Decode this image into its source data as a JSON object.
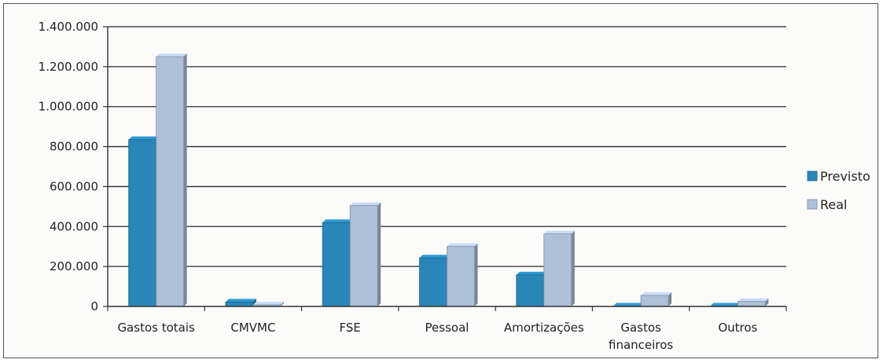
{
  "chart_data": {
    "type": "bar",
    "categories": [
      "Gastos totais",
      "CMVMC",
      "FSE",
      "Pessoal",
      "Amortizações",
      "Gastos financeiros",
      "Outros"
    ],
    "series": [
      {
        "name": "Previsto",
        "color": "#2a86b8",
        "values": [
          835000,
          22000,
          420000,
          243000,
          158000,
          2000,
          2000
        ]
      },
      {
        "name": "Real",
        "color": "#aebfd8",
        "values": [
          1250000,
          8000,
          505000,
          300000,
          363000,
          55000,
          25000
        ]
      }
    ],
    "y_ticks": [
      "0",
      "200.000",
      "400.000",
      "600.000",
      "800.000",
      "1.000.000",
      "1.200.000",
      "1.400.000"
    ],
    "ylim": [
      0,
      1400000
    ],
    "grid": true,
    "legend_position": "right"
  }
}
